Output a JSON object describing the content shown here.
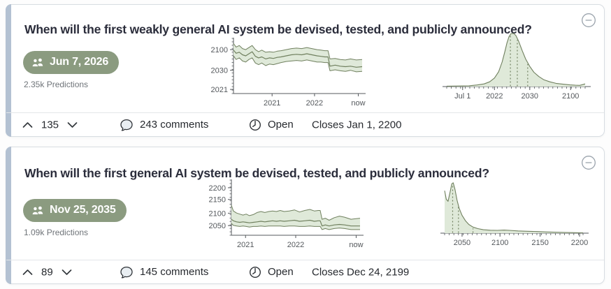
{
  "colors": {
    "accent_bar": "#b3c1d2",
    "card_border": "#d8dde2",
    "badge_bg": "#8b9b80",
    "badge_text": "#ffffff",
    "title_text": "#2b2d3b",
    "muted_text": "#6f7479",
    "chart_fill": "#dfe9d9",
    "chart_line": "#70805f",
    "chart_axis": "#54585c",
    "footer_text": "#26292e",
    "divider": "#e3e6e9",
    "icon_gray": "#9aa3ac",
    "page_bg": "#fdfdfd"
  },
  "cards": [
    {
      "title": "When will the first weakly general AI system be devised, tested, and publicly announced?",
      "badge_label": "Jun 7, 2026",
      "predictions_label": "2.35k Predictions",
      "votes": "135",
      "comments_label": "243 comments",
      "status_label": "Open",
      "closes_label": "Closes Jan 1, 2200",
      "timeseries": {
        "type": "band",
        "y_ticks": [
          {
            "label": "2100",
            "pos": 0.85
          },
          {
            "label": "2030",
            "pos": 0.45
          },
          {
            "label": "2021",
            "pos": 0.08
          }
        ],
        "x_ticks": [
          {
            "label": "2021",
            "pos": 0.3
          },
          {
            "label": "2022",
            "pos": 0.63
          },
          {
            "label": "now",
            "pos": 0.97
          }
        ],
        "x": [
          0,
          0.02,
          0.045,
          0.07,
          0.095,
          0.12,
          0.145,
          0.17,
          0.195,
          0.22,
          0.25,
          0.28,
          0.31,
          0.34,
          0.37,
          0.41,
          0.45,
          0.49,
          0.53,
          0.57,
          0.61,
          0.65,
          0.68,
          0.71,
          0.735,
          0.75,
          0.79,
          0.83,
          0.87,
          0.91,
          0.955,
          1
        ],
        "upper": [
          0.97,
          0.9,
          0.93,
          0.87,
          0.85,
          0.89,
          0.93,
          0.85,
          0.81,
          0.84,
          0.8,
          0.81,
          0.8,
          0.82,
          0.83,
          0.85,
          0.87,
          0.88,
          0.87,
          0.89,
          0.87,
          0.85,
          0.84,
          0.83,
          0.83,
          0.67,
          0.68,
          0.66,
          0.65,
          0.67,
          0.65,
          0.66
        ],
        "median": [
          0.84,
          0.78,
          0.8,
          0.75,
          0.73,
          0.77,
          0.81,
          0.72,
          0.69,
          0.71,
          0.67,
          0.69,
          0.68,
          0.7,
          0.71,
          0.73,
          0.75,
          0.76,
          0.75,
          0.77,
          0.75,
          0.73,
          0.72,
          0.71,
          0.71,
          0.53,
          0.55,
          0.53,
          0.52,
          0.53,
          0.51,
          0.52
        ],
        "lower": [
          0.73,
          0.66,
          0.69,
          0.63,
          0.61,
          0.66,
          0.69,
          0.59,
          0.56,
          0.59,
          0.54,
          0.57,
          0.56,
          0.58,
          0.6,
          0.62,
          0.63,
          0.64,
          0.63,
          0.65,
          0.63,
          0.61,
          0.61,
          0.6,
          0.6,
          0.44,
          0.46,
          0.44,
          0.43,
          0.45,
          0.42,
          0.43
        ]
      },
      "density": {
        "type": "density",
        "x_ticks": [
          {
            "label": "Jul 1",
            "pos": 0.115
          },
          {
            "label": "2022",
            "pos": 0.345
          },
          {
            "label": "2030",
            "pos": 0.6
          },
          {
            "label": "2100",
            "pos": 0.895
          }
        ],
        "points": [
          [
            0,
            0.008
          ],
          [
            0.08,
            0.01
          ],
          [
            0.16,
            0.015
          ],
          [
            0.22,
            0.03
          ],
          [
            0.27,
            0.05
          ],
          [
            0.31,
            0.09
          ],
          [
            0.345,
            0.16
          ],
          [
            0.375,
            0.28
          ],
          [
            0.4,
            0.46
          ],
          [
            0.42,
            0.66
          ],
          [
            0.435,
            0.82
          ],
          [
            0.45,
            0.94
          ],
          [
            0.465,
            1.0
          ],
          [
            0.485,
            1.0
          ],
          [
            0.5,
            0.96
          ],
          [
            0.52,
            0.85
          ],
          [
            0.545,
            0.68
          ],
          [
            0.57,
            0.52
          ],
          [
            0.6,
            0.38
          ],
          [
            0.63,
            0.27
          ],
          [
            0.665,
            0.19
          ],
          [
            0.7,
            0.13
          ],
          [
            0.745,
            0.09
          ],
          [
            0.79,
            0.06
          ],
          [
            0.84,
            0.045
          ],
          [
            0.89,
            0.032
          ],
          [
            0.93,
            0.025
          ],
          [
            0.96,
            0.022
          ],
          [
            0.98,
            0.035
          ],
          [
            1,
            0.05
          ]
        ],
        "quartiles": [
          0.46,
          0.51,
          0.585
        ]
      }
    },
    {
      "title": "When will the first general AI system be devised, tested, and publicly announced?",
      "badge_label": "Nov 25, 2035",
      "predictions_label": "1.09k Predictions",
      "votes": "89",
      "comments_label": "145 comments",
      "status_label": "Open",
      "closes_label": "Closes Dec 24, 2199",
      "timeseries": {
        "type": "band",
        "y_ticks": [
          {
            "label": "2200",
            "pos": 0.92
          },
          {
            "label": "2150",
            "pos": 0.693
          },
          {
            "label": "2100",
            "pos": 0.427
          },
          {
            "label": "2050",
            "pos": 0.187
          }
        ],
        "x_ticks": [
          {
            "label": "2021",
            "pos": 0.11
          },
          {
            "label": "2022",
            "pos": 0.5
          },
          {
            "label": "now",
            "pos": 0.97
          }
        ],
        "x": [
          0,
          0.015,
          0.04,
          0.065,
          0.09,
          0.115,
          0.14,
          0.17,
          0.2,
          0.23,
          0.26,
          0.29,
          0.32,
          0.35,
          0.38,
          0.41,
          0.45,
          0.49,
          0.53,
          0.57,
          0.61,
          0.645,
          0.675,
          0.69,
          0.705,
          0.73,
          0.76,
          0.8,
          0.84,
          0.88,
          0.93,
          1
        ],
        "upper": [
          0.58,
          0.47,
          0.43,
          0.41,
          0.39,
          0.41,
          0.38,
          0.4,
          0.44,
          0.46,
          0.44,
          0.46,
          0.47,
          0.46,
          0.48,
          0.46,
          0.47,
          0.49,
          0.45,
          0.48,
          0.5,
          0.47,
          0.48,
          0.48,
          0.31,
          0.33,
          0.29,
          0.34,
          0.37,
          0.35,
          0.31,
          0.33
        ],
        "median": [
          0.31,
          0.28,
          0.26,
          0.25,
          0.26,
          0.25,
          0.24,
          0.25,
          0.26,
          0.27,
          0.26,
          0.27,
          0.28,
          0.27,
          0.28,
          0.27,
          0.28,
          0.29,
          0.27,
          0.28,
          0.29,
          0.27,
          0.28,
          0.28,
          0.18,
          0.2,
          0.18,
          0.2,
          0.21,
          0.2,
          0.18,
          0.18
        ],
        "lower": [
          0.23,
          0.19,
          0.18,
          0.17,
          0.18,
          0.17,
          0.16,
          0.17,
          0.17,
          0.18,
          0.17,
          0.18,
          0.18,
          0.18,
          0.18,
          0.17,
          0.18,
          0.18,
          0.17,
          0.17,
          0.18,
          0.17,
          0.17,
          0.17,
          0.11,
          0.13,
          0.11,
          0.13,
          0.14,
          0.13,
          0.11,
          0.11
        ]
      },
      "density": {
        "type": "density",
        "x_ticks": [
          {
            "label": "2050",
            "pos": 0.126
          },
          {
            "label": "2100",
            "pos": 0.4
          },
          {
            "label": "2150",
            "pos": 0.69
          },
          {
            "label": "2200",
            "pos": 0.975
          }
        ],
        "points": [
          [
            0,
            0.8
          ],
          [
            0.012,
            0.64
          ],
          [
            0.025,
            0.6
          ],
          [
            0.04,
            0.78
          ],
          [
            0.052,
            0.93
          ],
          [
            0.062,
            0.95
          ],
          [
            0.075,
            0.82
          ],
          [
            0.09,
            0.62
          ],
          [
            0.105,
            0.47
          ],
          [
            0.125,
            0.34
          ],
          [
            0.15,
            0.235
          ],
          [
            0.175,
            0.165
          ],
          [
            0.205,
            0.115
          ],
          [
            0.24,
            0.085
          ],
          [
            0.28,
            0.065
          ],
          [
            0.33,
            0.055
          ],
          [
            0.38,
            0.052
          ],
          [
            0.43,
            0.058
          ],
          [
            0.47,
            0.052
          ],
          [
            0.53,
            0.042
          ],
          [
            0.6,
            0.036
          ],
          [
            0.67,
            0.03
          ],
          [
            0.74,
            0.023
          ],
          [
            0.81,
            0.017
          ],
          [
            0.88,
            0.012
          ],
          [
            0.94,
            0.009
          ],
          [
            1,
            0.007
          ]
        ],
        "quartiles": [
          0.058,
          0.1,
          0.205
        ]
      }
    }
  ]
}
